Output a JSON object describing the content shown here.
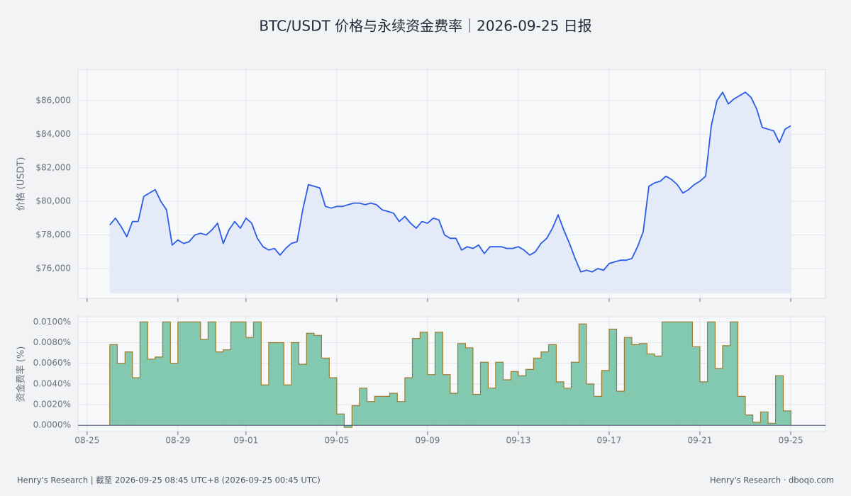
{
  "title": "BTC/USDT 价格与永续资金费率｜2026-09-25 日报",
  "footer_left": "Henry's Research | 截至 2026-09-25 08:45 UTC+8 (2026-09-25 00:45 UTC)",
  "footer_right": "Henry's Research · dboqo.com",
  "chart_data": [
    {
      "type": "area",
      "y_label": "价格 (USDT)",
      "color": "#2b5ce6",
      "fill": "#e4eaf8",
      "grid": true,
      "xlim": [
        -0.4,
        32.53
      ],
      "ylim": [
        74228,
        87857
      ],
      "xticks": [
        {
          "value": 0,
          "label": "08-25"
        },
        {
          "value": 4,
          "label": "08-29"
        },
        {
          "value": 7,
          "label": "09-01"
        },
        {
          "value": 11,
          "label": "09-05"
        },
        {
          "value": 15,
          "label": "09-09"
        },
        {
          "value": 19,
          "label": "09-13"
        },
        {
          "value": 23,
          "label": "09-17"
        },
        {
          "value": 27,
          "label": "09-21"
        },
        {
          "value": 31,
          "label": "09-25"
        }
      ],
      "yticks": [
        {
          "value": 76000,
          "label": "$76,000"
        },
        {
          "value": 78000,
          "label": "$78,000"
        },
        {
          "value": 80000,
          "label": "$80,000"
        },
        {
          "value": 82000,
          "label": "$82,000"
        },
        {
          "value": 84000,
          "label": "$84,000"
        },
        {
          "value": 86000,
          "label": "$86,000"
        }
      ],
      "x": [
        1,
        1.25,
        1.5,
        1.75,
        2,
        2.25,
        2.5,
        2.75,
        3,
        3.25,
        3.5,
        3.75,
        4,
        4.25,
        4.5,
        4.75,
        5,
        5.25,
        5.5,
        5.75,
        6,
        6.25,
        6.5,
        6.75,
        7,
        7.25,
        7.5,
        7.75,
        8,
        8.25,
        8.5,
        8.75,
        9,
        9.25,
        9.5,
        9.75,
        10,
        10.25,
        10.5,
        10.75,
        11,
        11.25,
        11.5,
        11.75,
        12,
        12.25,
        12.5,
        12.75,
        13,
        13.25,
        13.5,
        13.75,
        14,
        14.25,
        14.5,
        14.75,
        15,
        15.25,
        15.5,
        15.75,
        16,
        16.25,
        16.5,
        16.75,
        17,
        17.25,
        17.5,
        17.75,
        18,
        18.25,
        18.5,
        18.75,
        19,
        19.25,
        19.5,
        19.75,
        20,
        20.25,
        20.5,
        20.75,
        21,
        21.25,
        21.5,
        21.75,
        22,
        22.25,
        22.5,
        22.75,
        23,
        23.25,
        23.5,
        23.75,
        24,
        24.25,
        24.5,
        24.75,
        25,
        25.25,
        25.5,
        25.75,
        26,
        26.25,
        26.5,
        26.75,
        27,
        27.25,
        27.5,
        27.75,
        28,
        28.25,
        28.5,
        28.75,
        29,
        29.25,
        29.5,
        29.75,
        30,
        30.25,
        30.5,
        30.75,
        31
      ],
      "values": [
        78600,
        79000,
        78500,
        77900,
        78800,
        78800,
        80300,
        80500,
        80700,
        80000,
        79500,
        77400,
        77700,
        77500,
        77600,
        78000,
        78100,
        78000,
        78300,
        78700,
        77500,
        78300,
        78800,
        78400,
        79000,
        78700,
        77800,
        77300,
        77100,
        77200,
        76800,
        77200,
        77500,
        77600,
        79500,
        81000,
        80900,
        80800,
        79700,
        79600,
        79700,
        79700,
        79800,
        79900,
        79900,
        79800,
        79900,
        79800,
        79500,
        79400,
        79300,
        78800,
        79100,
        78700,
        78400,
        78800,
        78700,
        79000,
        78900,
        78000,
        77800,
        77800,
        77100,
        77300,
        77200,
        77400,
        76900,
        77300,
        77300,
        77300,
        77200,
        77200,
        77300,
        77100,
        76800,
        77000,
        77500,
        77800,
        78400,
        79200,
        78300,
        77500,
        76600,
        75800,
        75900,
        75800,
        76000,
        75900,
        76300,
        76400,
        76500,
        76500,
        76600,
        77300,
        78200,
        80900,
        81100,
        81200,
        81500,
        81300,
        81000,
        80500,
        80700,
        81000,
        81200,
        81500,
        84500,
        86000,
        86500,
        85800,
        86100,
        86300,
        86500,
        86200,
        85500,
        84400,
        84300,
        84200,
        83500,
        84300,
        84500
      ]
    },
    {
      "type": "step",
      "y_label": "资金费率 (%)",
      "color": "#82c9b0",
      "edge_color": "#a07a2e",
      "grid": true,
      "xlim": [
        -0.4,
        32.53
      ],
      "ylim": [
        -0.0006,
        0.0105
      ],
      "xticks": [
        {
          "value": 0,
          "label": "08-25"
        },
        {
          "value": 4,
          "label": "08-29"
        },
        {
          "value": 7,
          "label": "09-01"
        },
        {
          "value": 11,
          "label": "09-05"
        },
        {
          "value": 15,
          "label": "09-09"
        },
        {
          "value": 19,
          "label": "09-13"
        },
        {
          "value": 23,
          "label": "09-17"
        },
        {
          "value": 27,
          "label": "09-21"
        },
        {
          "value": 31,
          "label": "09-25"
        }
      ],
      "yticks": [
        {
          "value": 0,
          "label": "0.0000%"
        },
        {
          "value": 0.002,
          "label": "0.0020%"
        },
        {
          "value": 0.004,
          "label": "0.0040%"
        },
        {
          "value": 0.006,
          "label": "0.0060%"
        },
        {
          "value": 0.008,
          "label": "0.0080%"
        },
        {
          "value": 0.01,
          "label": "0.0100%"
        }
      ],
      "x": [
        1,
        1.33,
        1.67,
        2,
        2.33,
        2.67,
        3,
        3.33,
        3.67,
        4,
        4.33,
        4.67,
        5,
        5.33,
        5.67,
        6,
        6.33,
        6.67,
        7,
        7.33,
        7.67,
        8,
        8.33,
        8.67,
        9,
        9.33,
        9.67,
        10,
        10.33,
        10.67,
        11,
        11.33,
        11.67,
        12,
        12.33,
        12.67,
        13,
        13.33,
        13.67,
        14,
        14.33,
        14.67,
        15,
        15.33,
        15.67,
        16,
        16.33,
        16.67,
        17,
        17.33,
        17.67,
        18,
        18.33,
        18.67,
        19,
        19.33,
        19.67,
        20,
        20.33,
        20.67,
        21,
        21.33,
        21.67,
        22,
        22.33,
        22.67,
        23,
        23.33,
        23.67,
        24,
        24.33,
        24.67,
        25,
        25.33,
        25.67,
        26,
        26.33,
        26.67,
        27,
        27.33,
        27.67,
        28,
        28.33,
        28.67,
        29,
        29.33,
        29.67,
        30,
        30.33,
        30.67
      ],
      "values": [
        0.0078,
        0.006,
        0.0071,
        0.0046,
        0.01,
        0.0064,
        0.0066,
        0.01,
        0.006,
        0.01,
        0.01,
        0.01,
        0.0083,
        0.01,
        0.0071,
        0.0073,
        0.01,
        0.01,
        0.0085,
        0.01,
        0.0039,
        0.008,
        0.008,
        0.0039,
        0.008,
        0.0059,
        0.0089,
        0.0087,
        0.0065,
        0.0046,
        0.0011,
        -0.0002,
        0.0019,
        0.0036,
        0.0023,
        0.0028,
        0.0028,
        0.0031,
        0.0023,
        0.0046,
        0.0084,
        0.009,
        0.0049,
        0.009,
        0.0049,
        0.0031,
        0.0079,
        0.0075,
        0.003,
        0.0061,
        0.0036,
        0.0061,
        0.0044,
        0.0052,
        0.0048,
        0.0054,
        0.0065,
        0.0071,
        0.0078,
        0.0042,
        0.0036,
        0.0061,
        0.0098,
        0.004,
        0.0028,
        0.0053,
        0.0093,
        0.0033,
        0.0085,
        0.0078,
        0.0079,
        0.0069,
        0.0067,
        0.01,
        0.01,
        0.01,
        0.01,
        0.0076,
        0.0042,
        0.01,
        0.0055,
        0.0077,
        0.01,
        0.0028,
        0.001,
        0.0003,
        0.0013,
        0.0002,
        0.0048,
        0.0014
      ]
    }
  ]
}
